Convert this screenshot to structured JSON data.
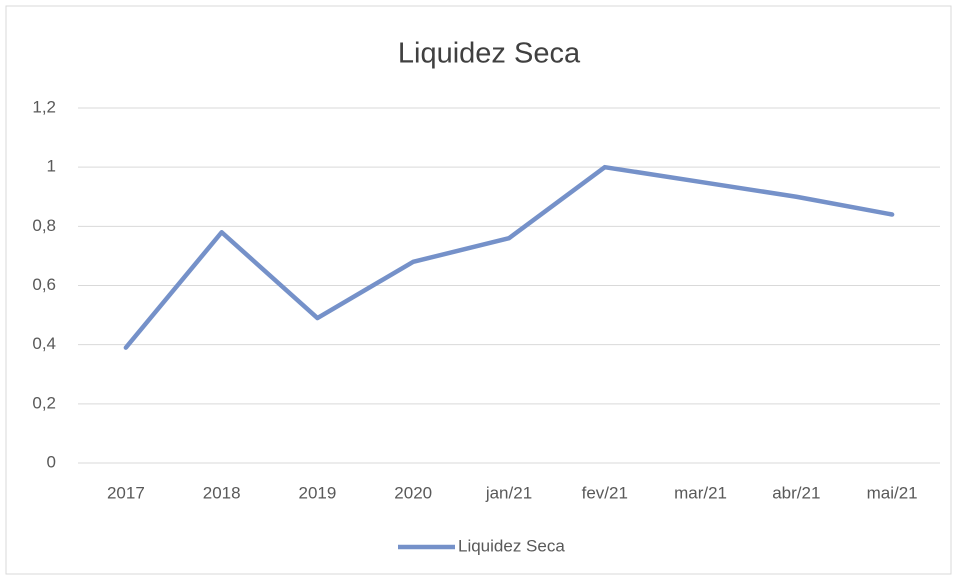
{
  "chart_data": {
    "type": "line",
    "title": "Liquidez Seca",
    "categories": [
      "2017",
      "2018",
      "2019",
      "2020",
      "jan/21",
      "fev/21",
      "mar/21",
      "abr/21",
      "mai/21"
    ],
    "series": [
      {
        "name": "Liquidez Seca",
        "color": "#7591c9",
        "values": [
          0.39,
          0.78,
          0.49,
          0.68,
          0.76,
          1.0,
          0.95,
          0.9,
          0.84
        ]
      }
    ],
    "ylim": [
      0,
      1.2
    ],
    "yticks": [
      0,
      {
        "value": 0.2,
        "label": "0,2"
      },
      {
        "value": 0.4,
        "label": "0,4"
      },
      {
        "value": 0.6,
        "label": "0,6"
      },
      {
        "value": 0.8,
        "label": "0,8"
      },
      1,
      {
        "value": 1.2,
        "label": "1,2"
      }
    ],
    "grid": true,
    "legend": "bottom"
  }
}
